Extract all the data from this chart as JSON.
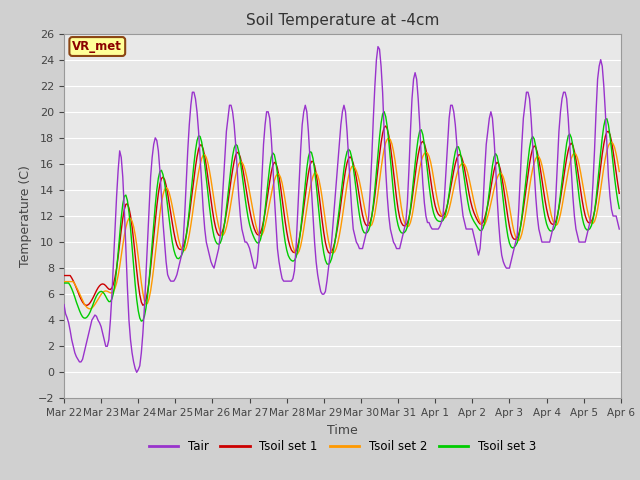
{
  "title": "Soil Temperature at -4cm",
  "xlabel": "Time",
  "ylabel": "Temperature (C)",
  "ylim": [
    -2,
    26
  ],
  "yticks": [
    -2,
    0,
    2,
    4,
    6,
    8,
    10,
    12,
    14,
    16,
    18,
    20,
    22,
    24,
    26
  ],
  "date_labels": [
    "Mar 22",
    "Mar 23",
    "Mar 24",
    "Mar 25",
    "Mar 26",
    "Mar 27",
    "Mar 28",
    "Mar 29",
    "Mar 30",
    "Mar 31",
    "Apr 1",
    "Apr 2",
    "Apr 3",
    "Apr 4",
    "Apr 5",
    "Apr 6"
  ],
  "colors": {
    "Tair": "#9933cc",
    "Tsoil1": "#cc0000",
    "Tsoil2": "#ff9900",
    "Tsoil3": "#00cc00"
  },
  "legend_labels": [
    "Tair",
    "Tsoil set 1",
    "Tsoil set 2",
    "Tsoil set 3"
  ],
  "annotation_text": "VR_met",
  "plot_bg_color": "#e8e8e8",
  "line_width": 1.0,
  "grid_color": "#ffffff",
  "title_fontsize": 11
}
